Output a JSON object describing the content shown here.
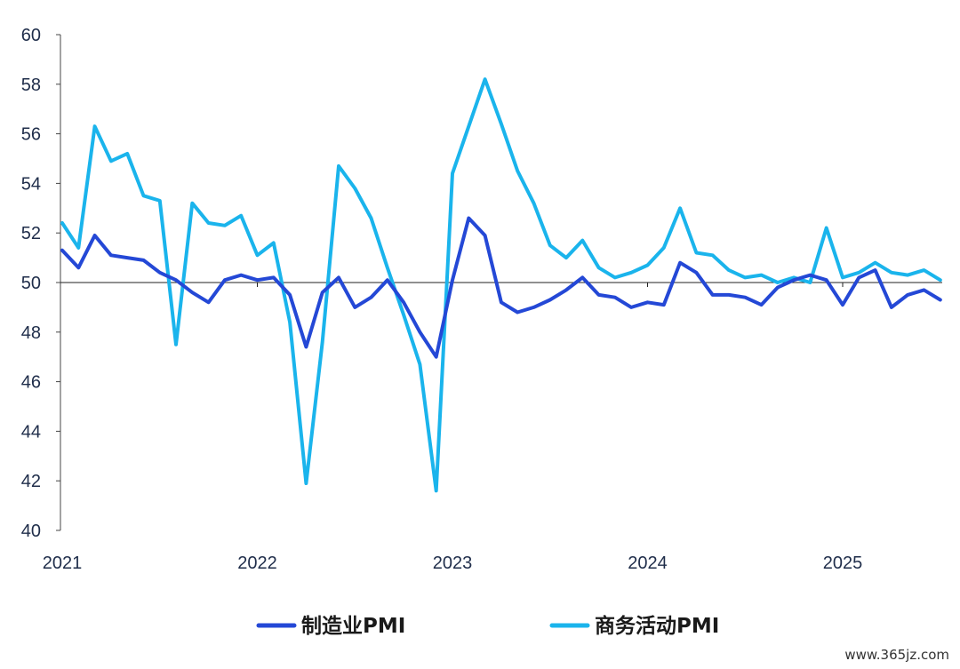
{
  "chart_data": {
    "type": "line",
    "title": "",
    "xlabel": "",
    "ylabel": "",
    "ylim": [
      40,
      60
    ],
    "yticks": [
      40,
      42,
      44,
      46,
      48,
      50,
      52,
      54,
      56,
      58,
      60
    ],
    "x_start": "2021-01",
    "x_tick_labels": [
      "2021",
      "2022",
      "2023",
      "2024",
      "2025"
    ],
    "reference_line": 50,
    "grid": false,
    "legend_position": "bottom",
    "series": [
      {
        "name": "制造业PMI",
        "color": "#2448d6",
        "values": [
          51.3,
          50.6,
          51.9,
          51.1,
          51.0,
          50.9,
          50.4,
          50.1,
          49.6,
          49.2,
          50.1,
          50.3,
          50.1,
          50.2,
          49.5,
          47.4,
          49.6,
          50.2,
          49.0,
          49.4,
          50.1,
          49.2,
          48.0,
          47.0,
          50.1,
          52.6,
          51.9,
          49.2,
          48.8,
          49.0,
          49.3,
          49.7,
          50.2,
          49.5,
          49.4,
          49.0,
          49.2,
          49.1,
          50.8,
          50.4,
          49.5,
          49.5,
          49.4,
          49.1,
          49.8,
          50.1,
          50.3,
          50.1,
          49.1,
          50.2,
          50.5,
          49.0,
          49.5,
          49.7,
          49.3
        ]
      },
      {
        "name": "商务活动PMI",
        "color": "#1ab4ec",
        "values": [
          52.4,
          51.4,
          56.3,
          54.9,
          55.2,
          53.5,
          53.3,
          47.5,
          53.2,
          52.4,
          52.3,
          52.7,
          51.1,
          51.6,
          48.4,
          41.9,
          47.6,
          54.7,
          53.8,
          52.6,
          50.6,
          48.7,
          46.7,
          41.6,
          54.4,
          56.3,
          58.2,
          56.4,
          54.5,
          53.2,
          51.5,
          51.0,
          51.7,
          50.6,
          50.2,
          50.4,
          50.7,
          51.4,
          53.0,
          51.2,
          51.1,
          50.5,
          50.2,
          50.3,
          50.0,
          50.2,
          50.0,
          52.2,
          50.2,
          50.4,
          50.8,
          50.4,
          50.3,
          50.5,
          50.1
        ]
      }
    ]
  },
  "watermark": "www.365jz.com"
}
